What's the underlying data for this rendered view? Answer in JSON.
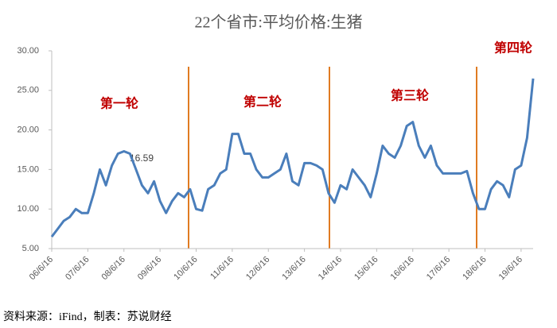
{
  "chart_data": {
    "type": "line",
    "title": "22个省市:平均价格:生猪",
    "categories": [
      "06/6/16",
      null,
      null,
      null,
      null,
      null,
      "07/6/16",
      null,
      null,
      null,
      null,
      null,
      "08/6/16",
      null,
      null,
      null,
      null,
      null,
      "09/6/16",
      null,
      null,
      null,
      null,
      null,
      "10/6/16",
      null,
      null,
      null,
      null,
      null,
      "11/6/16",
      null,
      null,
      null,
      null,
      null,
      "12/6/16",
      null,
      null,
      null,
      null,
      null,
      "13/6/16",
      null,
      null,
      null,
      null,
      null,
      "14/6/16",
      null,
      null,
      null,
      null,
      null,
      "15/6/16",
      null,
      null,
      null,
      null,
      null,
      "16/6/16",
      null,
      null,
      null,
      null,
      null,
      "17/6/16",
      null,
      null,
      null,
      null,
      null,
      "18/6/16",
      null,
      null,
      null,
      null,
      null,
      "19/6/16",
      null,
      null
    ],
    "series": [
      {
        "name": "22个省市:平均价格:生猪",
        "color": "#4a7ebb",
        "values": [
          6.5,
          7.5,
          8.5,
          9,
          10,
          9.5,
          9.5,
          12,
          15,
          13,
          15.5,
          17,
          17.3,
          17,
          15,
          13,
          12,
          13.5,
          11,
          9.5,
          11,
          12,
          11.5,
          12.5,
          10,
          9.8,
          12.5,
          13,
          14.5,
          15,
          19.5,
          19.5,
          17,
          17,
          15,
          14,
          14,
          14.5,
          15,
          17,
          13.5,
          13,
          15.8,
          15.8,
          15.5,
          15,
          12,
          10.8,
          13,
          12.5,
          15,
          14,
          13,
          11.5,
          14.5,
          18,
          17,
          16.5,
          18,
          20.5,
          21,
          18,
          16.5,
          18,
          15.5,
          14.5,
          14.5,
          14.5,
          14.5,
          14.8,
          12,
          10,
          10,
          12.5,
          13.5,
          13,
          11.5,
          15,
          15.5,
          19,
          26.5
        ]
      }
    ],
    "ylim": [
      5,
      30
    ],
    "yticks": [
      {
        "value": 5,
        "label": "5.00"
      },
      {
        "value": 10,
        "label": "10.00"
      },
      {
        "value": 15,
        "label": "15.00"
      },
      {
        "value": 20,
        "label": "20.00"
      },
      {
        "value": 25,
        "label": "25.00"
      },
      {
        "value": 30,
        "label": "30.00"
      }
    ],
    "annotations": [
      "第一轮",
      "第二轮",
      "第三轮",
      "第四轮"
    ],
    "marker_label": 16.59,
    "source": "资料来源：iFind，制表：苏说财经"
  }
}
